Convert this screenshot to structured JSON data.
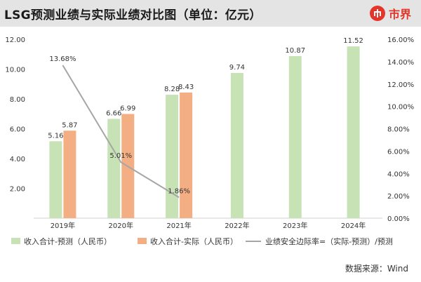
{
  "header": {
    "title": "LSG预测业绩与实际业绩对比图（单位：亿元）",
    "logo_text": "市界",
    "logo_icon": "logo-circle-icon"
  },
  "source_text": "数据来源：Wind",
  "chart_data": {
    "type": "bar",
    "categories": [
      "2019年",
      "2020年",
      "2021年",
      "2022年",
      "2023年",
      "2024年"
    ],
    "series": [
      {
        "name": "收入合计-预测（人民币）",
        "kind": "bar",
        "axis": "left",
        "color": "#c7e2b5",
        "values": [
          5.16,
          6.66,
          8.28,
          9.74,
          10.87,
          11.52
        ],
        "labels": [
          "5.16",
          "6.66",
          "8.28",
          "9.74",
          "10.87",
          "11.52"
        ]
      },
      {
        "name": "收入合计-实际（人民币）",
        "kind": "bar",
        "axis": "left",
        "color": "#f4ae84",
        "values": [
          5.87,
          6.99,
          8.43,
          null,
          null,
          null
        ],
        "labels": [
          "5.87",
          "6.99",
          "8.43",
          "",
          "",
          ""
        ]
      },
      {
        "name": "业绩安全边际率=（实际-预测）/预测",
        "kind": "line",
        "axis": "right",
        "color": "#a6a6a6",
        "values": [
          13.68,
          5.01,
          1.86,
          null,
          null,
          null
        ],
        "labels": [
          "13.68%",
          "5.01%",
          "1.86%",
          "",
          "",
          ""
        ]
      }
    ],
    "y_left": {
      "ylim": [
        0,
        12
      ],
      "ticks": [
        "",
        "2.00",
        "4.00",
        "6.00",
        "8.00",
        "10.00",
        "12.00"
      ]
    },
    "y_right": {
      "ylim": [
        0,
        16
      ],
      "ticks": [
        "0.00%",
        "2.00%",
        "4.00%",
        "6.00%",
        "8.00%",
        "10.00%",
        "12.00%",
        "14.00%",
        "16.00%"
      ]
    },
    "grid": false,
    "legend_position": "bottom"
  }
}
